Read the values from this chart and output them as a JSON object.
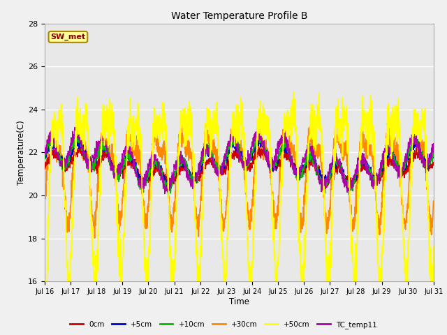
{
  "title": "Water Temperature Profile B",
  "xlabel": "Time",
  "ylabel": "Temperature(C)",
  "ylim": [
    16,
    28
  ],
  "yticks": [
    16,
    18,
    20,
    22,
    24,
    26,
    28
  ],
  "xtick_labels": [
    "Jul 16",
    "Jul 17",
    "Jul 18",
    "Jul 19",
    "Jul 20",
    "Jul 21",
    "Jul 22",
    "Jul 23",
    "Jul 24",
    "Jul 25",
    "Jul 26",
    "Jul 27",
    "Jul 28",
    "Jul 29",
    "Jul 30",
    "Jul 31"
  ],
  "series_colors": {
    "0cm": "#cc0000",
    "+5cm": "#0000cc",
    "+10cm": "#00bb00",
    "+30cm": "#ff8800",
    "+50cm": "#ffff00",
    "TC_temp11": "#aa00aa"
  },
  "bg_color": "#e8e8e8",
  "grid_color": "#ffffff",
  "sw_met_box_color": "#ffff99",
  "sw_met_text_color": "#880000",
  "sw_met_border_color": "#aa8800",
  "fig_bg": "#f0f0f0"
}
